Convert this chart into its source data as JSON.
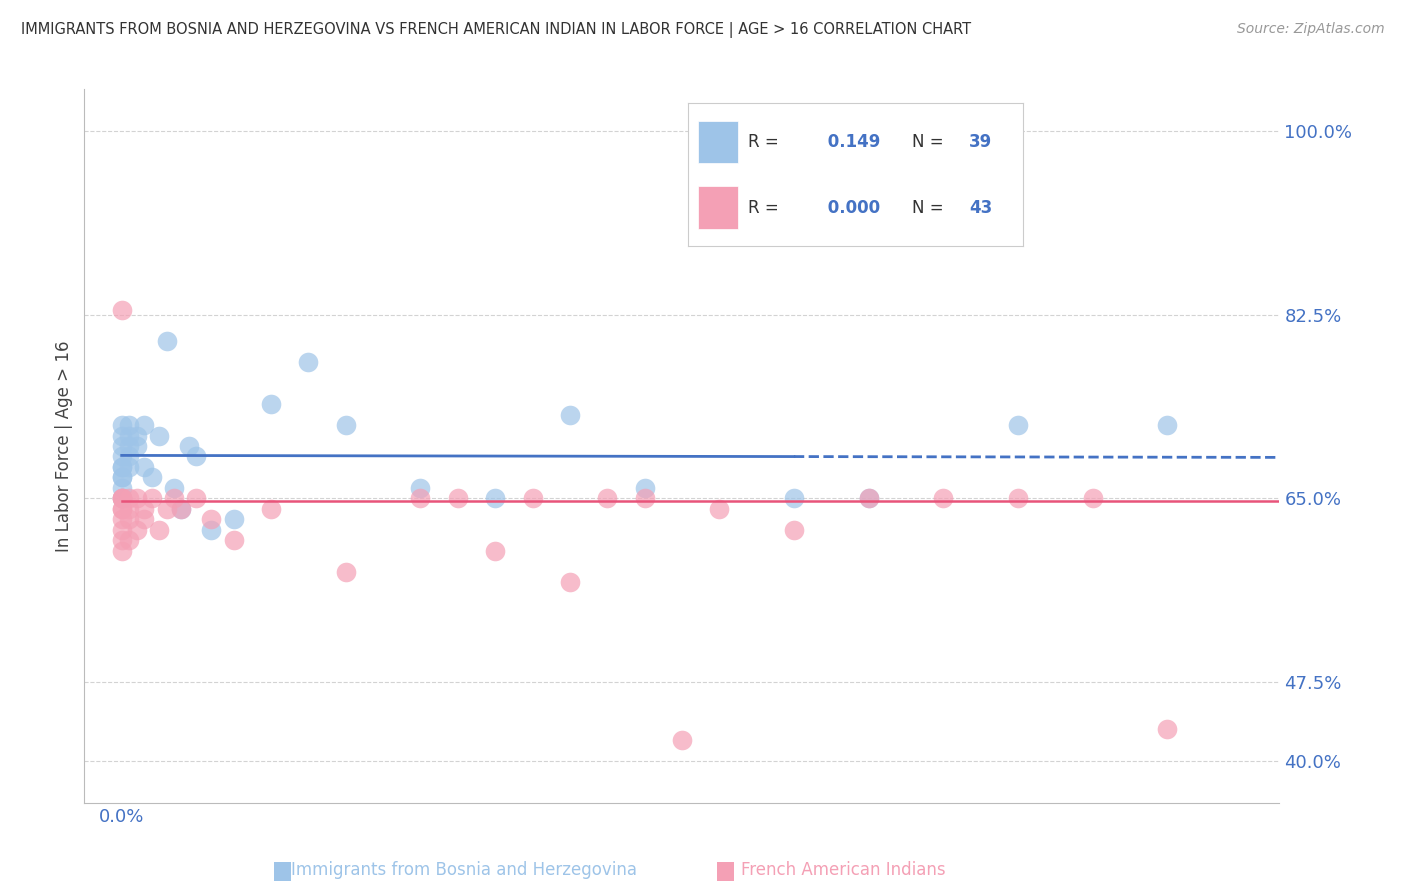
{
  "title": "IMMIGRANTS FROM BOSNIA AND HERZEGOVINA VS FRENCH AMERICAN INDIAN IN LABOR FORCE | AGE > 16 CORRELATION CHART",
  "source": "Source: ZipAtlas.com",
  "ylabel": "In Labor Force | Age > 16",
  "yticks": [
    0.4,
    0.475,
    0.65,
    0.825,
    1.0
  ],
  "ytick_labels": [
    "40.0%",
    "47.5%",
    "65.0%",
    "82.5%",
    "100.0%"
  ],
  "ylim": [
    0.36,
    1.04
  ],
  "xlim": [
    -0.0005,
    0.0155
  ],
  "blue_label": "Immigrants from Bosnia and Herzegovina",
  "pink_label": "French American Indians",
  "blue_R": 0.149,
  "blue_N": 39,
  "pink_R": 0.0,
  "pink_N": 43,
  "blue_color": "#9ec4e8",
  "pink_color": "#f4a0b5",
  "blue_line_color": "#4472c4",
  "pink_line_color": "#e8547a",
  "background_color": "#ffffff",
  "grid_color": "#c8c8c8",
  "blue_x": [
    0.0,
    0.0,
    0.0,
    0.0,
    0.0,
    0.0,
    0.0,
    0.0,
    0.0,
    0.0,
    0.0001,
    0.0001,
    0.0001,
    0.0001,
    0.0001,
    0.0002,
    0.0002,
    0.0003,
    0.0003,
    0.0004,
    0.0005,
    0.0006,
    0.0007,
    0.0008,
    0.0009,
    0.001,
    0.0012,
    0.0015,
    0.002,
    0.0025,
    0.003,
    0.004,
    0.005,
    0.006,
    0.007,
    0.009,
    0.01,
    0.012,
    0.014
  ],
  "blue_y": [
    0.7,
    0.69,
    0.68,
    0.67,
    0.66,
    0.65,
    0.71,
    0.72,
    0.68,
    0.67,
    0.69,
    0.7,
    0.71,
    0.68,
    0.72,
    0.7,
    0.71,
    0.68,
    0.72,
    0.67,
    0.71,
    0.8,
    0.66,
    0.64,
    0.7,
    0.69,
    0.62,
    0.63,
    0.74,
    0.78,
    0.72,
    0.66,
    0.65,
    0.73,
    0.66,
    0.65,
    0.65,
    0.72,
    0.72
  ],
  "pink_x": [
    0.0,
    0.0,
    0.0,
    0.0,
    0.0,
    0.0,
    0.0,
    0.0,
    0.0,
    0.0,
    0.0001,
    0.0001,
    0.0001,
    0.0001,
    0.0002,
    0.0002,
    0.0003,
    0.0003,
    0.0004,
    0.0005,
    0.0006,
    0.0007,
    0.0008,
    0.001,
    0.0012,
    0.0015,
    0.002,
    0.003,
    0.004,
    0.005,
    0.006,
    0.007,
    0.008,
    0.009,
    0.01,
    0.011,
    0.012,
    0.013,
    0.014,
    0.0045,
    0.0055,
    0.0065,
    0.0075
  ],
  "pink_y": [
    0.65,
    0.64,
    0.63,
    0.65,
    0.62,
    0.6,
    0.61,
    0.65,
    0.64,
    0.83,
    0.65,
    0.64,
    0.63,
    0.61,
    0.65,
    0.62,
    0.64,
    0.63,
    0.65,
    0.62,
    0.64,
    0.65,
    0.64,
    0.65,
    0.63,
    0.61,
    0.64,
    0.58,
    0.65,
    0.6,
    0.57,
    0.65,
    0.64,
    0.62,
    0.65,
    0.65,
    0.65,
    0.65,
    0.43,
    0.65,
    0.65,
    0.65,
    0.42
  ]
}
